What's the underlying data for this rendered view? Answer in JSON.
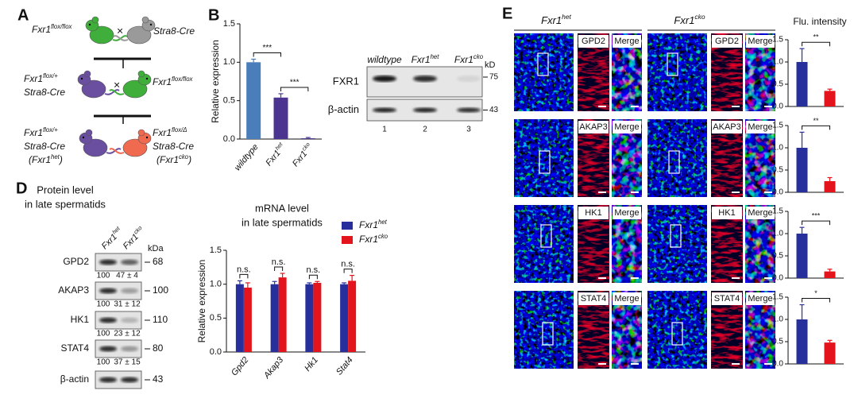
{
  "panels": {
    "a": "A",
    "b": "B",
    "d": "D",
    "e": "E"
  },
  "cross": {
    "p1": "Fxr1flox/flox",
    "times": "×",
    "cre": "Stra8-Cre",
    "f1": "Fxr1flox/+",
    "o2": "Fxr1flox/Δ",
    "o1_geno": "(Fxr1het)",
    "o2_geno": "(Fxr1cko)"
  },
  "blot_b": {
    "lanes": [
      "wildtype",
      "Fxr1het",
      "Fxr1cko"
    ],
    "kd": "kD",
    "rows": [
      {
        "label": "FXR1",
        "marker": "75"
      },
      {
        "label": "β-actin",
        "marker": "43"
      }
    ],
    "lane_numbers": [
      "1",
      "2",
      "3"
    ]
  },
  "blot_d": {
    "title": "Protein level",
    "subtitle": "in late spermatids",
    "lanes": [
      "Fxr1het",
      "Fxr1cko"
    ],
    "kda": "kDa",
    "rows": [
      {
        "label": "GPD2",
        "marker": "68",
        "quant": [
          "100",
          "47 ± 4"
        ]
      },
      {
        "label": "AKAP3",
        "marker": "100",
        "quant": [
          "100",
          "31 ± 12"
        ]
      },
      {
        "label": "HK1",
        "marker": "110",
        "quant": [
          "100",
          "23 ± 12"
        ]
      },
      {
        "label": "STAT4",
        "marker": "80",
        "quant": [
          "100",
          "37 ± 15"
        ]
      },
      {
        "label": "β-actin",
        "marker": "43"
      }
    ]
  },
  "imaging": {
    "columns": [
      "Fxr1het",
      "Fxr1cko"
    ],
    "merge": "Merge",
    "rows": [
      "GPD2",
      "AKAP3",
      "HK1",
      "STAT4"
    ],
    "chart_title": "Flu. intensity"
  },
  "chart_data": [
    {
      "type": "bar",
      "categories": [
        "wildtype",
        "Fxr1het",
        "Fxr1cko"
      ],
      "values": [
        1.0,
        0.54,
        0.01
      ],
      "errors": [
        0.04,
        0.05,
        0.01
      ],
      "colors": [
        "#4a7ebb",
        "#4b3591",
        "#4b3591"
      ],
      "y_label": "Relative expression",
      "ylim": [
        0,
        1.5
      ],
      "yticks": [
        {
          "value": 0,
          "label": "0.0"
        },
        {
          "value": 0.5,
          "label": "0.5"
        },
        {
          "value": 1,
          "label": "1.0"
        },
        {
          "value": 1.5,
          "label": "1.5"
        }
      ],
      "annotations": [
        "***",
        "***"
      ]
    },
    {
      "type": "grouped_bar",
      "title": "mRNA level",
      "subtitle": "in late spermatids",
      "categories": [
        "Gpd2",
        "Akap3",
        "Hk1",
        "Stat4"
      ],
      "series": [
        {
          "name": "Fxr1het",
          "color": "#262f9c",
          "values": [
            1.0,
            1.0,
            1.0,
            1.0
          ],
          "errors": [
            0.05,
            0.04,
            0.02,
            0.02
          ]
        },
        {
          "name": "Fxr1cko",
          "color": "#e3141b",
          "values": [
            0.95,
            1.1,
            1.02,
            1.05
          ],
          "errors": [
            0.07,
            0.06,
            0.02,
            0.08
          ]
        }
      ],
      "y_label": "Relative expression",
      "ylim": [
        0,
        1.5
      ],
      "yticks": [
        {
          "value": 0,
          "label": "0.0"
        },
        {
          "value": 0.5,
          "label": "0.5"
        },
        {
          "value": 1,
          "label": "1.0"
        },
        {
          "value": 1.5,
          "label": "1.5"
        }
      ],
      "annotations": [
        "n.s.",
        "n.s.",
        "n.s.",
        "n.s."
      ]
    },
    {
      "type": "bar",
      "categories": [
        null,
        null
      ],
      "values": [
        1.0,
        0.35
      ],
      "errors": [
        0.3,
        0.04
      ],
      "colors": [
        "#262f9c",
        "#e3141b"
      ],
      "ylim": [
        0,
        1.5
      ],
      "yticks": [
        {
          "value": 0,
          "label": "0.0"
        },
        {
          "value": 0.5,
          "label": "0.5"
        },
        {
          "value": 1,
          "label": "1.0"
        },
        {
          "value": 1.5,
          "label": "1.5"
        }
      ],
      "annotations": [
        "**"
      ]
    },
    {
      "type": "bar",
      "categories": [
        null,
        null
      ],
      "values": [
        1.0,
        0.25
      ],
      "errors": [
        0.35,
        0.08
      ],
      "colors": [
        "#262f9c",
        "#e3141b"
      ],
      "ylim": [
        0,
        1.5
      ],
      "yticks": [
        {
          "value": 0,
          "label": "0.0"
        },
        {
          "value": 0.5,
          "label": "0.5"
        },
        {
          "value": 1,
          "label": "1.0"
        },
        {
          "value": 1.5,
          "label": "1.5"
        }
      ],
      "annotations": [
        "**"
      ]
    },
    {
      "type": "bar",
      "categories": [
        null,
        null
      ],
      "values": [
        1.0,
        0.15
      ],
      "errors": [
        0.14,
        0.05
      ],
      "colors": [
        "#262f9c",
        "#e3141b"
      ],
      "ylim": [
        0,
        1.5
      ],
      "yticks": [
        {
          "value": 0,
          "label": "0.0"
        },
        {
          "value": 0.5,
          "label": "0.5"
        },
        {
          "value": 1,
          "label": "1.0"
        },
        {
          "value": 1.5,
          "label": "1.5"
        }
      ],
      "annotations": [
        "***"
      ]
    },
    {
      "type": "bar",
      "categories": [
        null,
        null
      ],
      "values": [
        1.0,
        0.48
      ],
      "errors": [
        0.33,
        0.05
      ],
      "colors": [
        "#262f9c",
        "#e3141b"
      ],
      "ylim": [
        0,
        1.5
      ],
      "yticks": [
        {
          "value": 0,
          "label": "0.0"
        },
        {
          "value": 0.5,
          "label": "0.5"
        },
        {
          "value": 1,
          "label": "1.0"
        },
        {
          "value": 1.5,
          "label": "1.5"
        }
      ],
      "annotations": [
        "*"
      ]
    }
  ]
}
